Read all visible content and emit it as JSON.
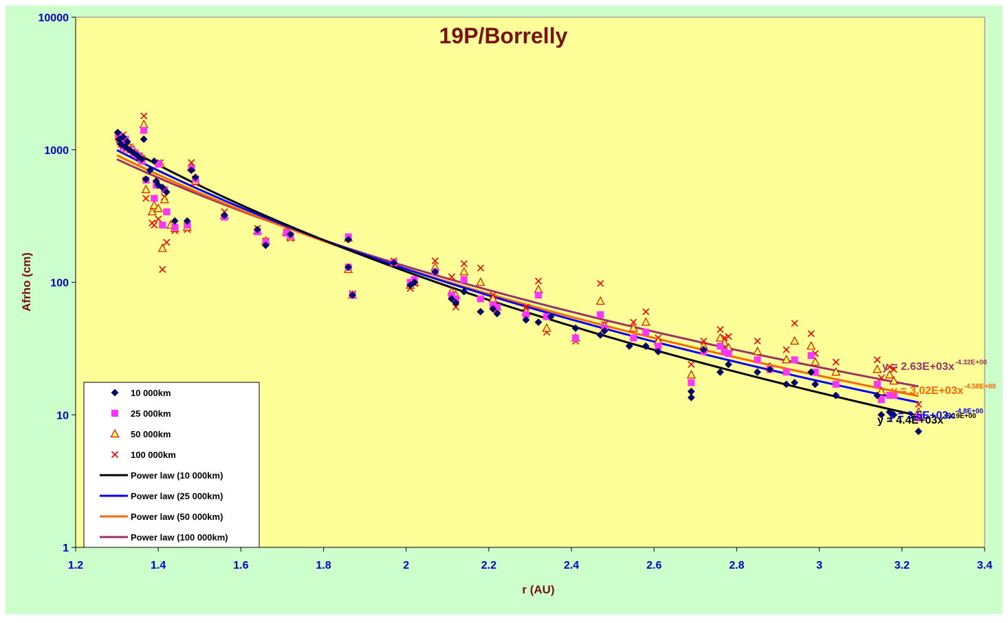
{
  "chart_data": {
    "type": "scatter",
    "title": "19P/Borrelly",
    "xlabel": "r (AU)",
    "ylabel": "Afrho (cm)",
    "xlim": [
      1.2,
      3.4
    ],
    "ylim": [
      1,
      10000
    ],
    "yscale": "log",
    "x_ticks": [
      "1.2",
      "1.4",
      "1.6",
      "1.8",
      "2",
      "2.2",
      "2.4",
      "2.6",
      "2.8",
      "3",
      "3.2",
      "3.4"
    ],
    "y_ticks": [
      "1",
      "10",
      "100",
      "1000",
      "10000"
    ],
    "grid": false,
    "legend_position": "bottom-left",
    "colors": {
      "outer_bg": "#ccffcc",
      "plot_bg": "#ffff99",
      "title": "#7a1010",
      "ylabel": "#7a1010",
      "xlabel": "#7a1010",
      "tick_labels": "#0000cc"
    },
    "series": [
      {
        "name": "10 000km",
        "marker": "diamond",
        "color": "#000080",
        "points": [
          [
            1.302,
            1350
          ],
          [
            1.305,
            1200
          ],
          [
            1.31,
            1100
          ],
          [
            1.315,
            1250
          ],
          [
            1.32,
            1050
          ],
          [
            1.325,
            1150
          ],
          [
            1.33,
            1000
          ],
          [
            1.34,
            950
          ],
          [
            1.35,
            900
          ],
          [
            1.36,
            850
          ],
          [
            1.365,
            1200
          ],
          [
            1.37,
            600
          ],
          [
            1.38,
            700
          ],
          [
            1.39,
            820
          ],
          [
            1.395,
            580
          ],
          [
            1.4,
            540
          ],
          [
            1.41,
            520
          ],
          [
            1.42,
            480
          ],
          [
            1.44,
            290
          ],
          [
            1.47,
            290
          ],
          [
            1.48,
            700
          ],
          [
            1.49,
            620
          ],
          [
            1.56,
            320
          ],
          [
            1.64,
            250
          ],
          [
            1.66,
            190
          ],
          [
            1.72,
            230
          ],
          [
            1.86,
            210
          ],
          [
            1.86,
            130
          ],
          [
            1.87,
            80
          ],
          [
            1.97,
            140
          ],
          [
            2.01,
            95
          ],
          [
            2.02,
            100
          ],
          [
            2.07,
            120
          ],
          [
            2.11,
            75
          ],
          [
            2.12,
            70
          ],
          [
            2.14,
            85
          ],
          [
            2.18,
            60
          ],
          [
            2.21,
            63
          ],
          [
            2.22,
            58
          ],
          [
            2.29,
            52
          ],
          [
            2.32,
            50
          ],
          [
            2.35,
            55
          ],
          [
            2.41,
            45
          ],
          [
            2.47,
            40
          ],
          [
            2.48,
            43
          ],
          [
            2.54,
            33
          ],
          [
            2.58,
            33
          ],
          [
            2.61,
            30
          ],
          [
            2.69,
            15
          ],
          [
            2.69,
            13.5
          ],
          [
            2.72,
            31
          ],
          [
            2.76,
            21
          ],
          [
            2.78,
            24
          ],
          [
            2.85,
            21
          ],
          [
            2.88,
            22
          ],
          [
            2.92,
            17
          ],
          [
            2.94,
            17.5
          ],
          [
            2.98,
            21
          ],
          [
            2.99,
            17
          ],
          [
            3.04,
            14
          ],
          [
            3.14,
            14
          ],
          [
            3.15,
            10
          ],
          [
            3.17,
            10.5
          ],
          [
            3.18,
            10
          ],
          [
            3.24,
            7.5
          ]
        ]
      },
      {
        "name": "25 000km",
        "marker": "square",
        "color": "#ff33ff",
        "points": [
          [
            1.303,
            1300
          ],
          [
            1.31,
            1150
          ],
          [
            1.315,
            1050
          ],
          [
            1.32,
            1200
          ],
          [
            1.33,
            1000
          ],
          [
            1.34,
            950
          ],
          [
            1.35,
            900
          ],
          [
            1.36,
            820
          ],
          [
            1.365,
            1400
          ],
          [
            1.37,
            590
          ],
          [
            1.39,
            430
          ],
          [
            1.395,
            540
          ],
          [
            1.4,
            780
          ],
          [
            1.41,
            270
          ],
          [
            1.415,
            500
          ],
          [
            1.42,
            340
          ],
          [
            1.44,
            260
          ],
          [
            1.47,
            270
          ],
          [
            1.48,
            720
          ],
          [
            1.49,
            600
          ],
          [
            1.56,
            310
          ],
          [
            1.64,
            240
          ],
          [
            1.66,
            200
          ],
          [
            1.71,
            235
          ],
          [
            1.72,
            225
          ],
          [
            1.86,
            220
          ],
          [
            1.86,
            130
          ],
          [
            1.87,
            80
          ],
          [
            1.97,
            140
          ],
          [
            2.01,
            100
          ],
          [
            2.02,
            105
          ],
          [
            2.07,
            120
          ],
          [
            2.11,
            80
          ],
          [
            2.12,
            75
          ],
          [
            2.14,
            105
          ],
          [
            2.18,
            75
          ],
          [
            2.21,
            68
          ],
          [
            2.22,
            65
          ],
          [
            2.29,
            57
          ],
          [
            2.32,
            80
          ],
          [
            2.34,
            55
          ],
          [
            2.41,
            38
          ],
          [
            2.47,
            57
          ],
          [
            2.48,
            45
          ],
          [
            2.55,
            38
          ],
          [
            2.58,
            42
          ],
          [
            2.61,
            33
          ],
          [
            2.69,
            17.5
          ],
          [
            2.72,
            30
          ],
          [
            2.76,
            33
          ],
          [
            2.77,
            30
          ],
          [
            2.78,
            29
          ],
          [
            2.85,
            26
          ],
          [
            2.88,
            22
          ],
          [
            2.92,
            21
          ],
          [
            2.94,
            26
          ],
          [
            2.98,
            28
          ],
          [
            2.99,
            21
          ],
          [
            3.04,
            17
          ],
          [
            3.14,
            17
          ],
          [
            3.15,
            13
          ],
          [
            3.17,
            14
          ],
          [
            3.18,
            14
          ],
          [
            3.24,
            9.5
          ]
        ]
      },
      {
        "name": "50 000km",
        "marker": "triangle",
        "color": "#ff9900",
        "points": [
          [
            1.305,
            1250
          ],
          [
            1.31,
            1150
          ],
          [
            1.32,
            1100
          ],
          [
            1.33,
            1050
          ],
          [
            1.34,
            1000
          ],
          [
            1.35,
            920
          ],
          [
            1.36,
            880
          ],
          [
            1.365,
            1550
          ],
          [
            1.37,
            500
          ],
          [
            1.385,
            340
          ],
          [
            1.39,
            380
          ],
          [
            1.4,
            360
          ],
          [
            1.405,
            780
          ],
          [
            1.41,
            180
          ],
          [
            1.415,
            420
          ],
          [
            1.43,
            270
          ],
          [
            1.44,
            255
          ],
          [
            1.47,
            260
          ],
          [
            1.48,
            740
          ],
          [
            1.49,
            580
          ],
          [
            1.56,
            320
          ],
          [
            1.64,
            245
          ],
          [
            1.66,
            205
          ],
          [
            1.71,
            240
          ],
          [
            1.72,
            220
          ],
          [
            1.86,
            215
          ],
          [
            1.86,
            125
          ],
          [
            1.87,
            80
          ],
          [
            1.97,
            140
          ],
          [
            2.01,
            95
          ],
          [
            2.02,
            100
          ],
          [
            2.07,
            130
          ],
          [
            2.11,
            85
          ],
          [
            2.12,
            80
          ],
          [
            2.14,
            120
          ],
          [
            2.18,
            100
          ],
          [
            2.21,
            75
          ],
          [
            2.22,
            65
          ],
          [
            2.29,
            60
          ],
          [
            2.32,
            88
          ],
          [
            2.34,
            45
          ],
          [
            2.41,
            38
          ],
          [
            2.47,
            72
          ],
          [
            2.48,
            47
          ],
          [
            2.55,
            45
          ],
          [
            2.58,
            50
          ],
          [
            2.61,
            36
          ],
          [
            2.69,
            20
          ],
          [
            2.72,
            33
          ],
          [
            2.76,
            38
          ],
          [
            2.77,
            35
          ],
          [
            2.78,
            32
          ],
          [
            2.85,
            30
          ],
          [
            2.88,
            23
          ],
          [
            2.92,
            26
          ],
          [
            2.94,
            36
          ],
          [
            2.98,
            33
          ],
          [
            2.99,
            25
          ],
          [
            3.04,
            21
          ],
          [
            3.14,
            22
          ],
          [
            3.15,
            15
          ],
          [
            3.17,
            20
          ],
          [
            3.18,
            18
          ],
          [
            3.24,
            10.5
          ]
        ]
      },
      {
        "name": "100 000km",
        "marker": "cross",
        "color": "#ff0000",
        "points": [
          [
            1.305,
            1200
          ],
          [
            1.31,
            1100
          ],
          [
            1.315,
            1300
          ],
          [
            1.32,
            1000
          ],
          [
            1.33,
            1050
          ],
          [
            1.34,
            950
          ],
          [
            1.35,
            900
          ],
          [
            1.36,
            860
          ],
          [
            1.365,
            1800
          ],
          [
            1.37,
            430
          ],
          [
            1.385,
            280
          ],
          [
            1.39,
            270
          ],
          [
            1.4,
            300
          ],
          [
            1.405,
            800
          ],
          [
            1.41,
            125
          ],
          [
            1.415,
            440
          ],
          [
            1.42,
            200
          ],
          [
            1.44,
            245
          ],
          [
            1.47,
            250
          ],
          [
            1.48,
            800
          ],
          [
            1.49,
            560
          ],
          [
            1.56,
            340
          ],
          [
            1.64,
            255
          ],
          [
            1.66,
            205
          ],
          [
            1.71,
            240
          ],
          [
            1.72,
            215
          ],
          [
            1.86,
            220
          ],
          [
            1.86,
            125
          ],
          [
            1.87,
            82
          ],
          [
            1.97,
            145
          ],
          [
            2.01,
            90
          ],
          [
            2.02,
            98
          ],
          [
            2.07,
            145
          ],
          [
            2.11,
            110
          ],
          [
            2.12,
            65
          ],
          [
            2.14,
            138
          ],
          [
            2.18,
            128
          ],
          [
            2.21,
            80
          ],
          [
            2.22,
            62
          ],
          [
            2.29,
            65
          ],
          [
            2.32,
            102
          ],
          [
            2.34,
            42
          ],
          [
            2.41,
            36
          ],
          [
            2.47,
            98
          ],
          [
            2.48,
            48
          ],
          [
            2.55,
            50
          ],
          [
            2.58,
            60
          ],
          [
            2.61,
            38
          ],
          [
            2.69,
            24
          ],
          [
            2.72,
            36
          ],
          [
            2.76,
            44
          ],
          [
            2.77,
            38
          ],
          [
            2.78,
            39
          ],
          [
            2.85,
            36
          ],
          [
            2.88,
            22
          ],
          [
            2.92,
            31
          ],
          [
            2.94,
            49
          ],
          [
            2.98,
            41
          ],
          [
            2.99,
            29
          ],
          [
            3.04,
            25
          ],
          [
            3.14,
            26
          ],
          [
            3.15,
            19
          ],
          [
            3.17,
            23
          ],
          [
            3.18,
            22
          ],
          [
            3.24,
            12
          ]
        ]
      }
    ],
    "fits": [
      {
        "name": "Power law (10 000km)",
        "color": "#000000",
        "a": 4400,
        "b": -5.19,
        "xrange": [
          1.3,
          3.24
        ],
        "label": "y = 4.4E+03x",
        "label_exp": "-5.19E+00"
      },
      {
        "name": "Power law (25 000km)",
        "color": "#0000ff",
        "a": 3500,
        "b": -4.8,
        "xrange": [
          1.3,
          3.24
        ],
        "label": "y = 3.5E+03x",
        "label_exp": "-4.8E+00"
      },
      {
        "name": "Power law (50 000km)",
        "color": "#ff6600",
        "a": 3020,
        "b": -4.58,
        "xrange": [
          1.3,
          3.24
        ],
        "label": "y = 3.02E+03x",
        "label_exp": "-4.58E+00"
      },
      {
        "name": "Power law (100 000km)",
        "color": "#993366",
        "a": 2630,
        "b": -4.32,
        "xrange": [
          1.3,
          3.24
        ],
        "label": "y = 2.63E+03x",
        "label_exp": "-4.32E+00"
      }
    ]
  }
}
